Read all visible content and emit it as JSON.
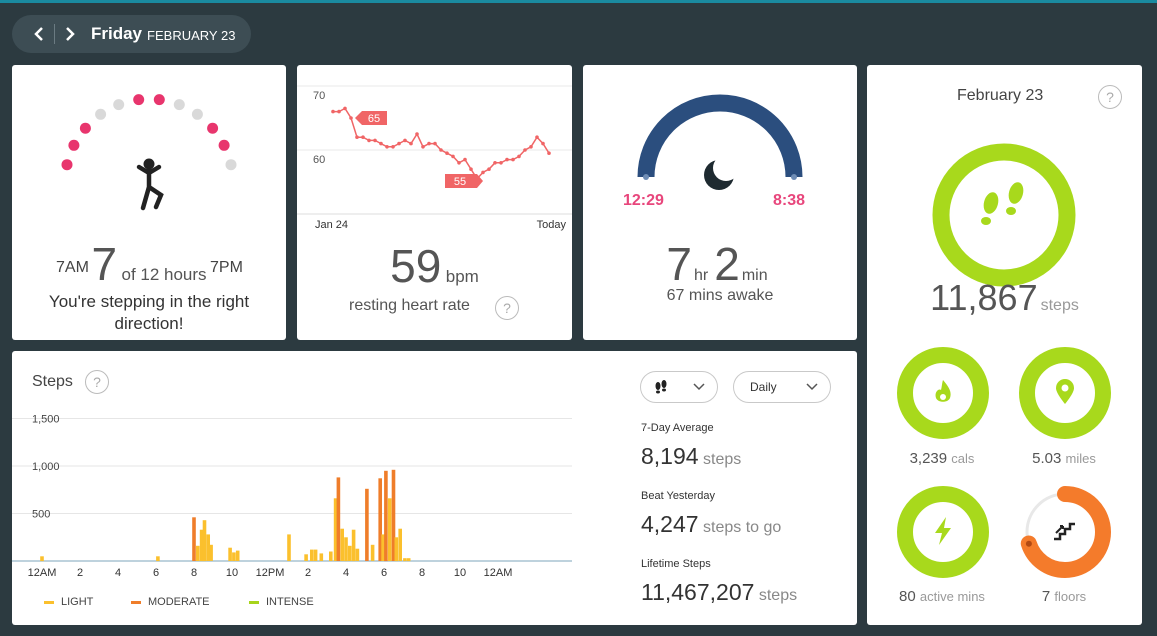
{
  "header": {
    "day": "Friday",
    "month_date": "FEBRUARY 23"
  },
  "hourly": {
    "start_label": "7AM",
    "end_label": "7PM",
    "value": "7",
    "unit": "of 12 hours",
    "message": "You're stepping in the right direction!",
    "hours_met": [
      true,
      true,
      true,
      false,
      false,
      true,
      true,
      false,
      false,
      true,
      true,
      false
    ],
    "colors": {
      "met": "#e8356d",
      "unmet": "#d9d9d9"
    }
  },
  "heart": {
    "y_labels": [
      "70",
      "60"
    ],
    "x_start": "Jan 24",
    "x_end": "Today",
    "max_callout": "65",
    "min_callout": "55",
    "value": "59",
    "unit": "bpm",
    "label": "resting heart rate",
    "series": [
      66,
      66,
      66.5,
      65,
      62,
      62,
      61.5,
      61.5,
      61,
      60.5,
      60.5,
      61,
      61.5,
      61,
      62.5,
      60.5,
      61,
      61,
      60,
      59.5,
      59,
      58,
      58.5,
      57,
      55.5,
      56.5,
      57,
      58,
      58,
      58.5,
      58.5,
      59,
      60,
      60.5,
      62,
      61,
      59.5
    ],
    "y_range": [
      54,
      72
    ],
    "color": "#f06566"
  },
  "sleep": {
    "start": "12:29",
    "end": "8:38",
    "hours": "7",
    "hours_unit": "hr",
    "minutes": "2",
    "minutes_unit": "min",
    "awake": "67 mins awake",
    "color": "#2b4e7e"
  },
  "steps_chart": {
    "title": "Steps",
    "dropdown_activity": "steps-icon",
    "dropdown_period": "Daily",
    "stats": [
      {
        "label": "7-Day Average",
        "value": "8,194",
        "unit": "steps"
      },
      {
        "label": "Beat Yesterday",
        "value": "4,247",
        "unit": "steps to go"
      },
      {
        "label": "Lifetime Steps",
        "value": "11,467,207",
        "unit": "steps"
      }
    ],
    "legend": [
      {
        "label": "LIGHT",
        "color": "#fbc02d"
      },
      {
        "label": "MODERATE",
        "color": "#ef7d2a"
      },
      {
        "label": "INTENSE",
        "color": "#a7d41b"
      }
    ]
  },
  "chart_data": {
    "type": "bar",
    "ylim": [
      0,
      1500
    ],
    "y_ticks": [
      "1,500",
      "1,000",
      "500"
    ],
    "x_ticks": [
      "12AM",
      "2",
      "4",
      "6",
      "8",
      "10",
      "12PM",
      "2",
      "4",
      "6",
      "8",
      "10",
      "12AM"
    ],
    "bars": [
      [
        1.0,
        50,
        "light"
      ],
      [
        7.1,
        50,
        "light"
      ],
      [
        9.0,
        460,
        "moderate"
      ],
      [
        9.2,
        160,
        "light"
      ],
      [
        9.4,
        330,
        "light"
      ],
      [
        9.55,
        430,
        "light"
      ],
      [
        9.75,
        280,
        "light"
      ],
      [
        9.9,
        170,
        "light"
      ],
      [
        10.9,
        140,
        "light"
      ],
      [
        11.1,
        90,
        "light"
      ],
      [
        11.3,
        110,
        "light"
      ],
      [
        14.0,
        280,
        "light"
      ],
      [
        14.9,
        70,
        "light"
      ],
      [
        15.2,
        120,
        "light"
      ],
      [
        15.4,
        120,
        "light"
      ],
      [
        15.7,
        80,
        "light"
      ],
      [
        16.2,
        100,
        "light"
      ],
      [
        16.45,
        660,
        "light"
      ],
      [
        16.6,
        880,
        "moderate"
      ],
      [
        16.8,
        340,
        "light"
      ],
      [
        17.0,
        250,
        "light"
      ],
      [
        17.2,
        160,
        "light"
      ],
      [
        17.4,
        330,
        "light"
      ],
      [
        17.6,
        130,
        "light"
      ],
      [
        18.1,
        760,
        "moderate"
      ],
      [
        18.4,
        170,
        "light"
      ],
      [
        18.8,
        870,
        "moderate"
      ],
      [
        18.95,
        280,
        "light"
      ],
      [
        19.1,
        950,
        "moderate"
      ],
      [
        19.3,
        660,
        "light"
      ],
      [
        19.5,
        960,
        "moderate"
      ],
      [
        19.65,
        250,
        "light"
      ],
      [
        19.85,
        340,
        "light"
      ],
      [
        20.1,
        30,
        "light"
      ],
      [
        20.3,
        30,
        "light"
      ]
    ]
  },
  "goals": {
    "date": "February 23",
    "steps": "11,867",
    "steps_unit": "steps",
    "rings": [
      {
        "name": "calories",
        "value": "3,239",
        "unit": "cals",
        "progress": 1.0,
        "icon": "flame-icon"
      },
      {
        "name": "distance",
        "value": "5.03",
        "unit": "miles",
        "progress": 1.0,
        "icon": "location-pin-icon"
      },
      {
        "name": "active",
        "value": "80",
        "unit": "active mins",
        "progress": 1.0,
        "icon": "lightning-icon"
      },
      {
        "name": "floors",
        "value": "7",
        "unit": "floors",
        "progress": 0.7,
        "icon": "stairs-icon"
      }
    ],
    "colors": {
      "green": "#a8d91c",
      "orange": "#f47b2b",
      "track": "#e8e8e8"
    }
  }
}
